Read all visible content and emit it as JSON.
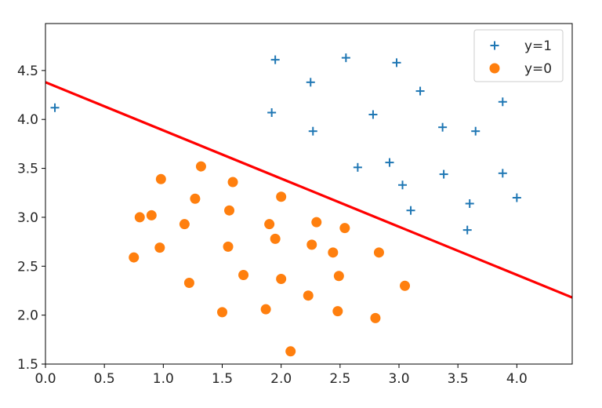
{
  "chart_data": {
    "type": "scatter",
    "title": "",
    "xlabel": "",
    "ylabel": "",
    "xlim": [
      0.0,
      4.47
    ],
    "ylim": [
      1.5,
      4.98
    ],
    "xticks": [
      "0.0",
      "0.5",
      "1.0",
      "1.5",
      "2.0",
      "2.5",
      "3.0",
      "3.5",
      "4.0"
    ],
    "yticks": [
      "1.5",
      "2.0",
      "2.5",
      "3.0",
      "3.5",
      "4.0",
      "4.5"
    ],
    "grid": false,
    "legend_position": "top-right",
    "series": [
      {
        "name": "y=1",
        "marker": "plus",
        "color": "#1f77b4",
        "points": [
          [
            0.08,
            4.12
          ],
          [
            1.95,
            4.61
          ],
          [
            2.55,
            4.63
          ],
          [
            2.98,
            4.58
          ],
          [
            2.25,
            4.38
          ],
          [
            3.18,
            4.29
          ],
          [
            1.92,
            4.07
          ],
          [
            2.78,
            4.05
          ],
          [
            3.88,
            4.18
          ],
          [
            2.27,
            3.88
          ],
          [
            3.37,
            3.92
          ],
          [
            3.65,
            3.88
          ],
          [
            2.65,
            3.51
          ],
          [
            2.92,
            3.56
          ],
          [
            3.38,
            3.44
          ],
          [
            3.88,
            3.45
          ],
          [
            3.03,
            3.33
          ],
          [
            3.1,
            3.07
          ],
          [
            3.6,
            3.14
          ],
          [
            4.0,
            3.2
          ],
          [
            3.58,
            2.87
          ]
        ]
      },
      {
        "name": "y=0",
        "marker": "circle",
        "color": "#ff7f0e",
        "points": [
          [
            1.32,
            3.52
          ],
          [
            0.98,
            3.39
          ],
          [
            1.59,
            3.36
          ],
          [
            1.27,
            3.19
          ],
          [
            2.0,
            3.21
          ],
          [
            0.8,
            3.0
          ],
          [
            0.9,
            3.02
          ],
          [
            1.56,
            3.07
          ],
          [
            1.18,
            2.93
          ],
          [
            1.9,
            2.93
          ],
          [
            2.3,
            2.95
          ],
          [
            2.54,
            2.89
          ],
          [
            1.95,
            2.78
          ],
          [
            0.97,
            2.69
          ],
          [
            1.55,
            2.7
          ],
          [
            2.26,
            2.72
          ],
          [
            2.44,
            2.64
          ],
          [
            2.83,
            2.64
          ],
          [
            0.75,
            2.59
          ],
          [
            1.22,
            2.33
          ],
          [
            1.68,
            2.41
          ],
          [
            2.0,
            2.37
          ],
          [
            2.49,
            2.4
          ],
          [
            3.05,
            2.3
          ],
          [
            2.23,
            2.2
          ],
          [
            1.5,
            2.03
          ],
          [
            1.87,
            2.06
          ],
          [
            2.48,
            2.04
          ],
          [
            2.8,
            1.97
          ],
          [
            2.08,
            1.63
          ]
        ]
      }
    ],
    "decision_line": {
      "color": "#ff0000",
      "x": [
        0.0,
        4.47
      ],
      "y": [
        4.38,
        2.18
      ]
    }
  }
}
